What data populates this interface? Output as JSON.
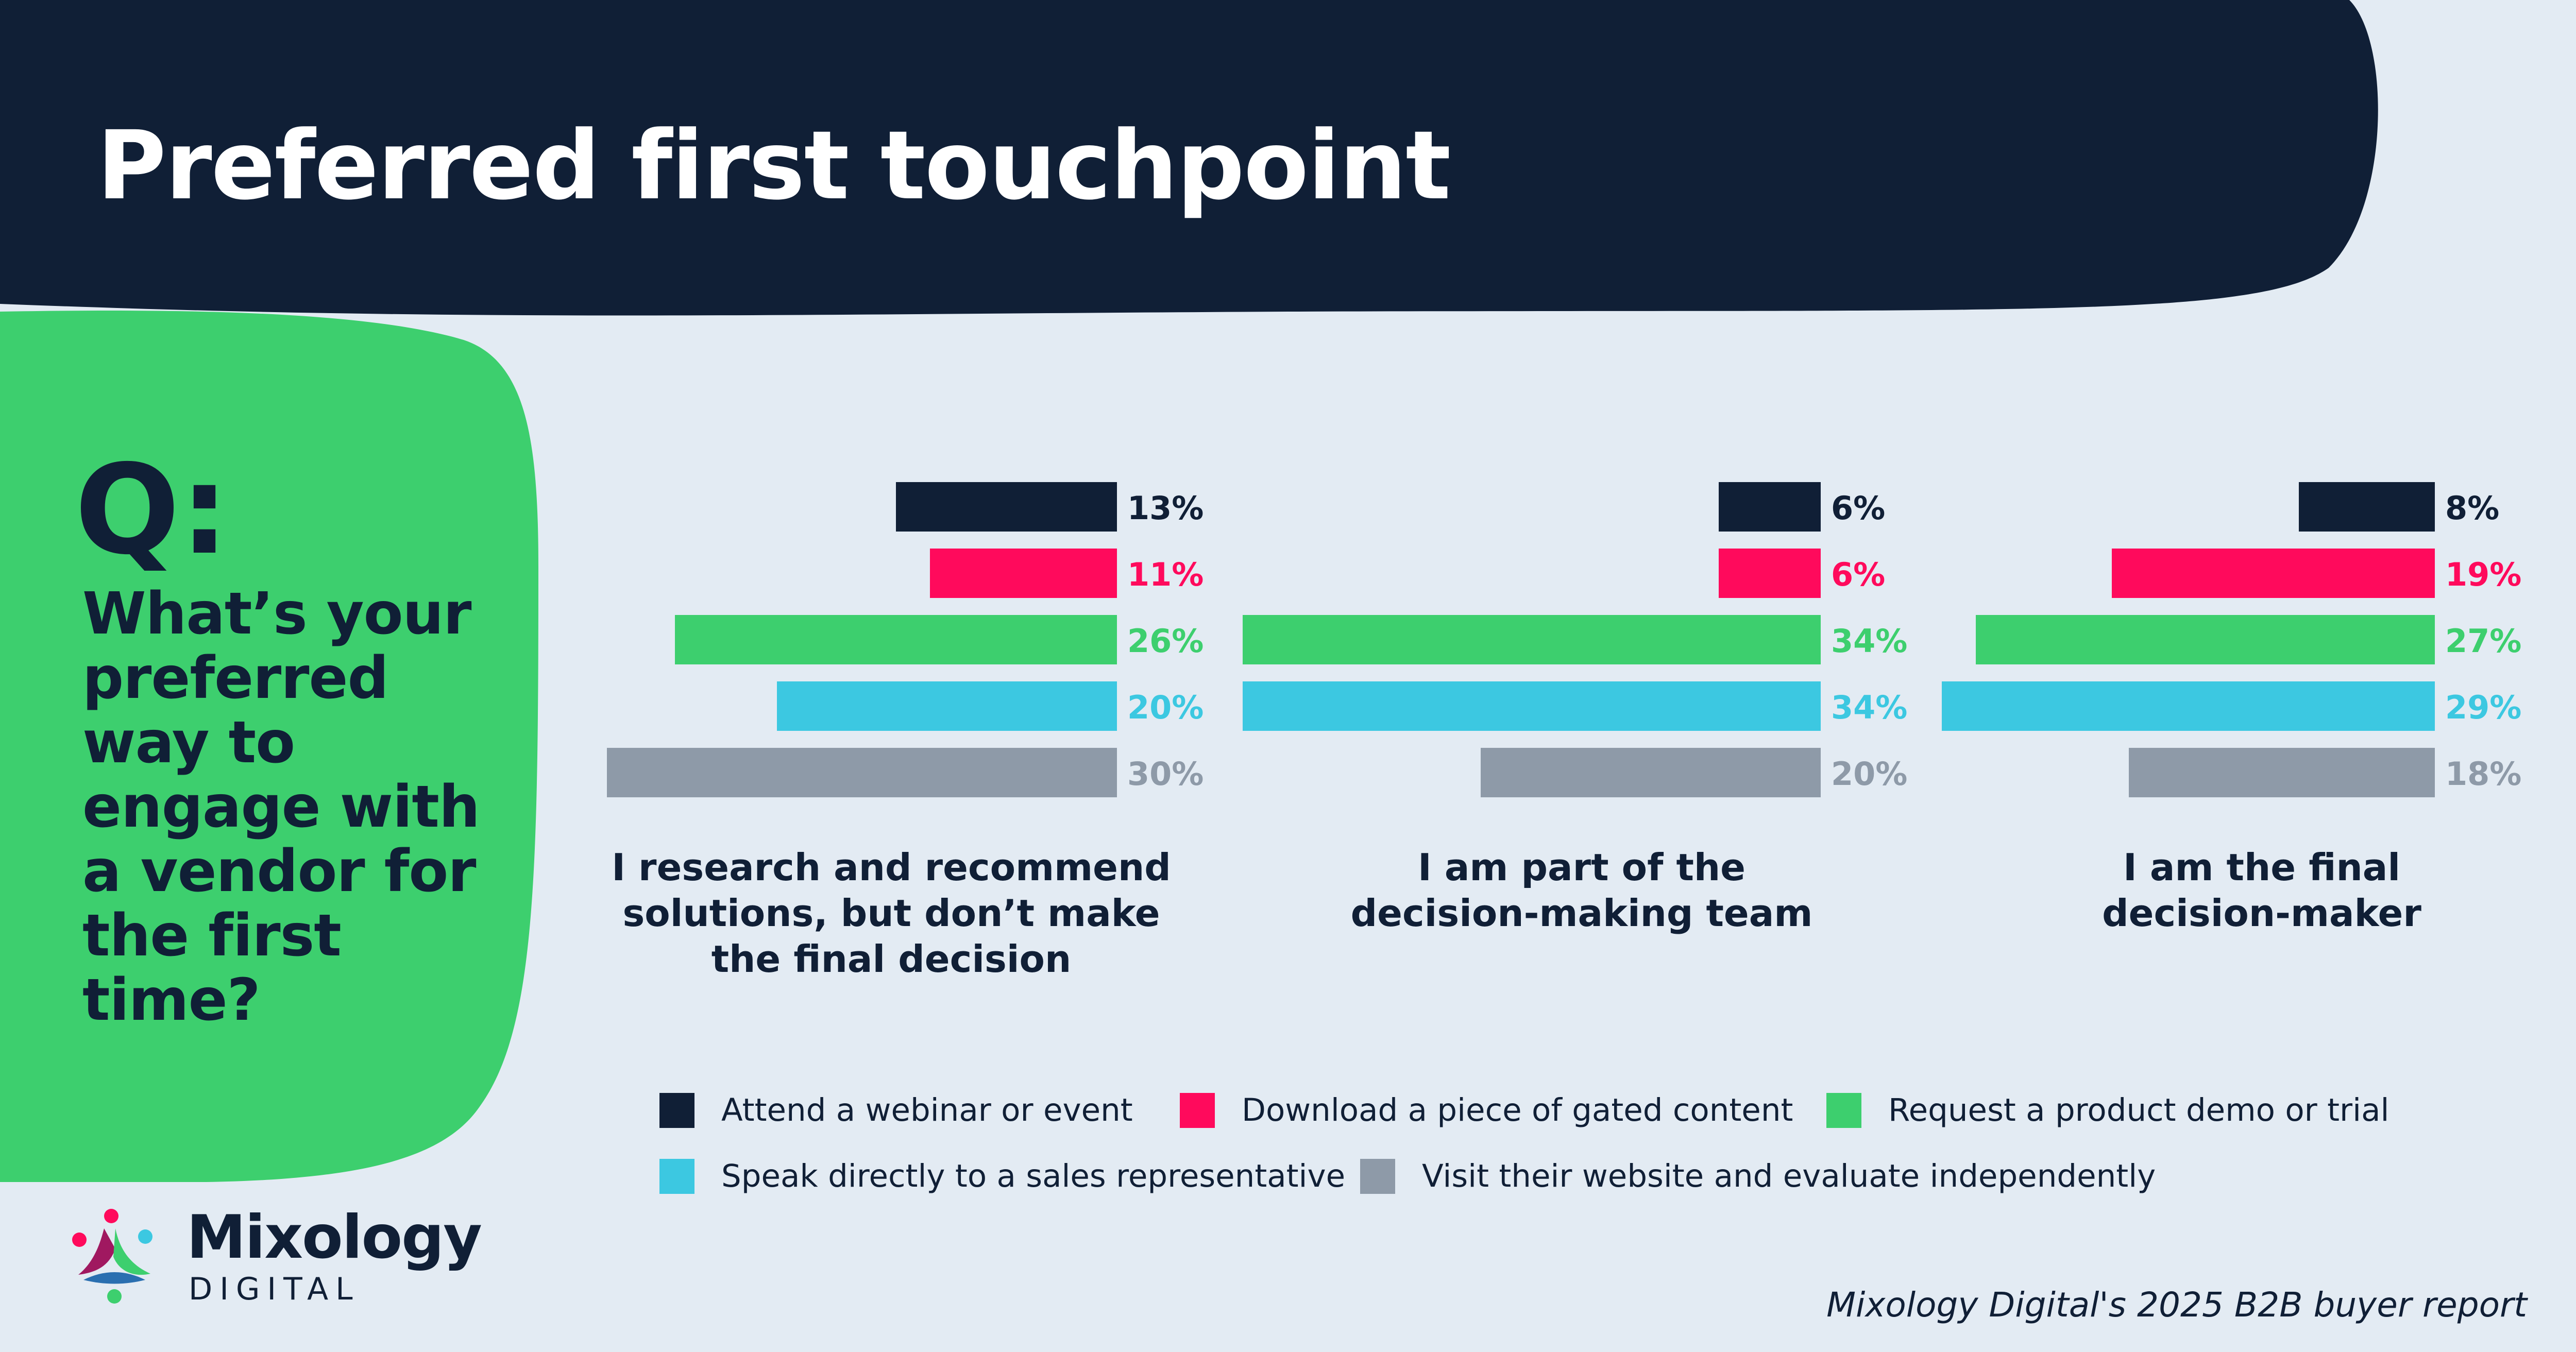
{
  "header": {
    "title": "Preferred first touchpoint"
  },
  "question": {
    "marker": "Q:",
    "text": "What’s your preferred way to engage with a vendor for the first time?"
  },
  "colors": {
    "navy": "#101f36",
    "pink": "#ff0a5c",
    "green": "#3dcf6e",
    "cyan": "#3cc8e1",
    "gray": "#8e9aa8",
    "background": "#e3ebf3"
  },
  "chart_data": {
    "type": "bar",
    "orientation": "horizontal",
    "series": [
      {
        "name": "Attend a webinar or event",
        "color": "#101f36",
        "label_color": "#101f36"
      },
      {
        "name": "Download a piece of gated content",
        "color": "#ff0a5c",
        "label_color": "#ff0a5c"
      },
      {
        "name": "Request a product demo or trial",
        "color": "#3dcf6e",
        "label_color": "#3dcf6e"
      },
      {
        "name": "Speak directly to a sales representative",
        "color": "#3cc8e1",
        "label_color": "#3cc8e1"
      },
      {
        "name": "Visit their website and evaluate independently",
        "color": "#8e9aa8",
        "label_color": "#8e9aa8"
      }
    ],
    "groups": [
      {
        "label": "I research and recommend solutions, but don’t make the final decision",
        "values": [
          13,
          11,
          26,
          20,
          30
        ],
        "value_labels": [
          "13%",
          "11%",
          "26%",
          "20%",
          "30%"
        ]
      },
      {
        "label": "I am part of the decision-making team",
        "values": [
          6,
          6,
          34,
          34,
          20
        ],
        "value_labels": [
          "6%",
          "6%",
          "34%",
          "34%",
          "20%"
        ]
      },
      {
        "label": "I am the final decision-maker",
        "values": [
          8,
          19,
          27,
          29,
          18
        ],
        "value_labels": [
          "8%",
          "19%",
          "27%",
          "29%",
          "18%"
        ]
      }
    ],
    "unit": "%",
    "legend_position": "bottom"
  },
  "legend": {
    "items": [
      "Attend a webinar or event",
      "Download a piece of gated content",
      "Request a product demo or trial",
      "Speak directly to a sales representative",
      "Visit their website and evaluate independently"
    ]
  },
  "brand": {
    "name": "Mixology",
    "sub": "DIGITAL"
  },
  "footer": {
    "source": "Mixology Digital's 2025 B2B buyer report"
  }
}
